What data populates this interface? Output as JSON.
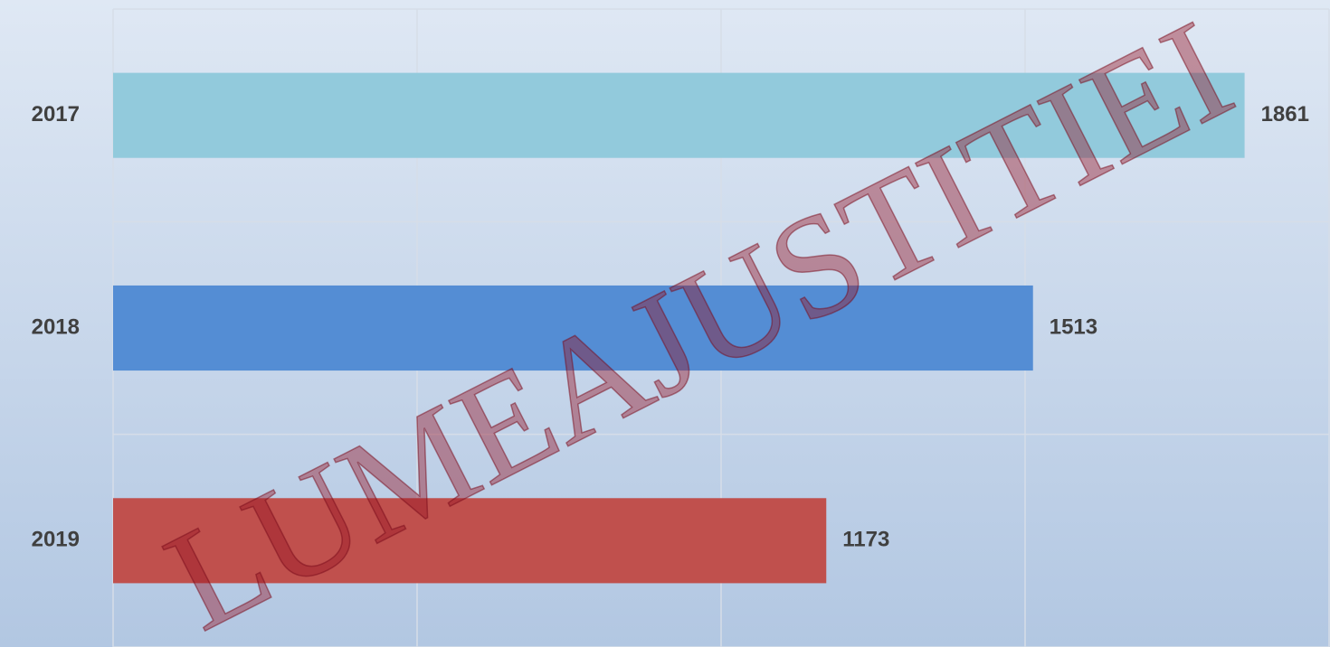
{
  "chart_data": {
    "type": "bar",
    "orientation": "horizontal",
    "categories": [
      "2017",
      "2018",
      "2019"
    ],
    "values": [
      1861,
      1513,
      1173
    ],
    "colors": [
      "#92cadc",
      "#548dd4",
      "#c0504d"
    ],
    "xlim": [
      0,
      2000
    ],
    "xticks": [
      0,
      500,
      1000,
      1500,
      2000
    ],
    "grid": true,
    "watermark": "LUMEAJUSTITIEI"
  }
}
